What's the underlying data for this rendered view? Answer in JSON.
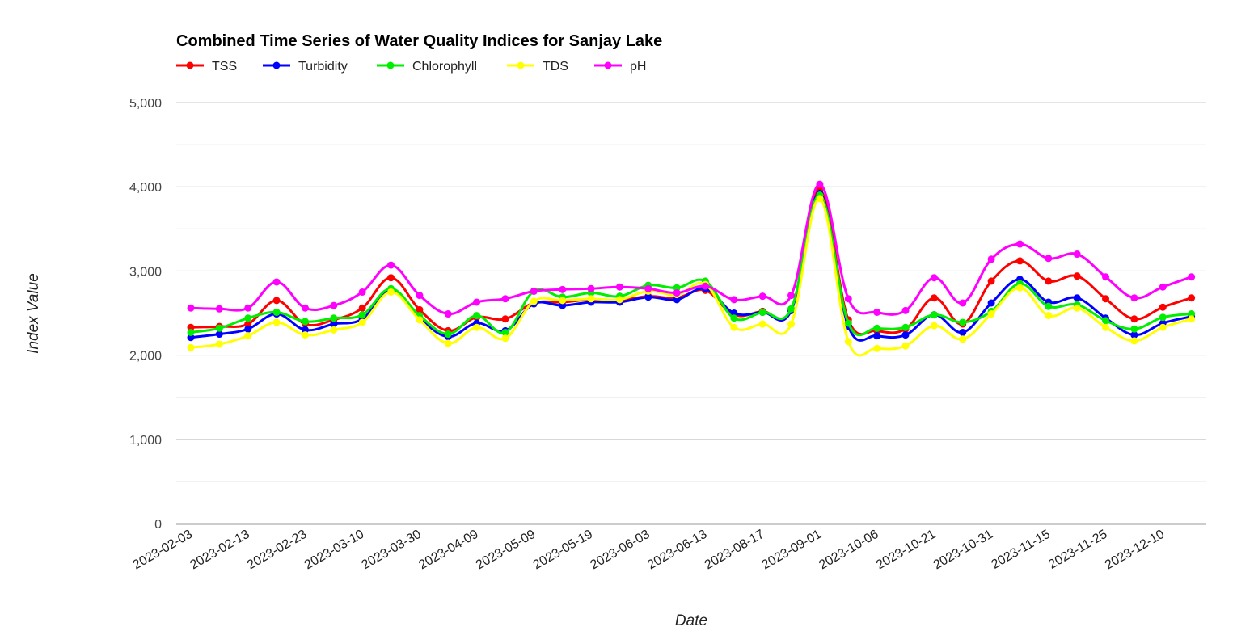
{
  "chart_data": {
    "type": "line",
    "title": "Combined Time Series of Water Quality Indices for Sanjay Lake",
    "xlabel": "Date",
    "ylabel": "Index Value",
    "ylim": [
      0,
      5000
    ],
    "yticks": [
      0,
      1000,
      2000,
      3000,
      4000,
      5000
    ],
    "ytick_labels": [
      "0",
      "1,000",
      "2,000",
      "3,000",
      "4,000",
      "5,000"
    ],
    "x": [
      "2023-02-03",
      "2023-02-08",
      "2023-02-13",
      "2023-02-18",
      "2023-02-23",
      "2023-02-28",
      "2023-03-10",
      "2023-03-15",
      "2023-03-30",
      "2023-04-04",
      "2023-04-09",
      "2023-04-29",
      "2023-05-09",
      "2023-05-14",
      "2023-05-19",
      "2023-05-29",
      "2023-06-03",
      "2023-06-08",
      "2023-06-13",
      "2023-08-12",
      "2023-08-17",
      "2023-08-27",
      "2023-09-01",
      "2023-09-06",
      "2023-10-06",
      "2023-10-11",
      "2023-10-21",
      "2023-10-26",
      "2023-10-31",
      "2023-11-05",
      "2023-11-15",
      "2023-11-20",
      "2023-11-25",
      "2023-11-30",
      "2023-12-10",
      "2023-12-15"
    ],
    "x_tick_labels": [
      "2023-02-03",
      "2023-02-13",
      "2023-02-23",
      "2023-03-10",
      "2023-03-30",
      "2023-04-09",
      "2023-05-09",
      "2023-05-19",
      "2023-06-03",
      "2023-06-13",
      "2023-08-17",
      "2023-09-01",
      "2023-10-06",
      "2023-10-21",
      "2023-10-31",
      "2023-11-15",
      "2023-11-25",
      "2023-12-10"
    ],
    "grid": true,
    "legend_position": "top-left",
    "series": [
      {
        "name": "TSS",
        "color": "#ff0000",
        "values": [
          2330,
          2340,
          2370,
          2650,
          2370,
          2420,
          2560,
          2920,
          2540,
          2290,
          2450,
          2430,
          2620,
          2630,
          2660,
          2650,
          2700,
          2680,
          2770,
          2480,
          2520,
          2530,
          3960,
          2420,
          2290,
          2310,
          2680,
          2370,
          2880,
          3120,
          2880,
          2940,
          2670,
          2430,
          2570,
          2680
        ]
      },
      {
        "name": "Turbidity",
        "color": "#0000ff",
        "values": [
          2210,
          2250,
          2310,
          2490,
          2300,
          2370,
          2430,
          2780,
          2440,
          2220,
          2380,
          2290,
          2610,
          2590,
          2630,
          2630,
          2690,
          2660,
          2790,
          2500,
          2510,
          2530,
          3920,
          2340,
          2230,
          2240,
          2480,
          2270,
          2620,
          2900,
          2630,
          2680,
          2440,
          2240,
          2380,
          2460
        ]
      },
      {
        "name": "Chlorophyll",
        "color": "#00ee00",
        "values": [
          2270,
          2320,
          2440,
          2510,
          2400,
          2440,
          2480,
          2790,
          2470,
          2250,
          2470,
          2270,
          2760,
          2690,
          2740,
          2700,
          2830,
          2800,
          2880,
          2440,
          2510,
          2550,
          3900,
          2380,
          2320,
          2330,
          2480,
          2390,
          2520,
          2850,
          2580,
          2600,
          2410,
          2310,
          2450,
          2490
        ]
      },
      {
        "name": "TDS",
        "color": "#ffff00",
        "values": [
          2090,
          2130,
          2230,
          2390,
          2240,
          2300,
          2390,
          2750,
          2420,
          2140,
          2330,
          2200,
          2640,
          2650,
          2670,
          2660,
          2760,
          2720,
          2840,
          2330,
          2370,
          2370,
          3860,
          2160,
          2080,
          2110,
          2350,
          2190,
          2490,
          2800,
          2470,
          2560,
          2330,
          2170,
          2330,
          2430
        ]
      },
      {
        "name": "pH",
        "color": "#ff00ff",
        "values": [
          2560,
          2550,
          2560,
          2870,
          2560,
          2590,
          2750,
          3070,
          2710,
          2490,
          2630,
          2670,
          2760,
          2780,
          2790,
          2810,
          2790,
          2740,
          2820,
          2660,
          2700,
          2710,
          4030,
          2670,
          2510,
          2530,
          2920,
          2620,
          3140,
          3320,
          3150,
          3200,
          2930,
          2680,
          2810,
          2930
        ]
      }
    ]
  }
}
